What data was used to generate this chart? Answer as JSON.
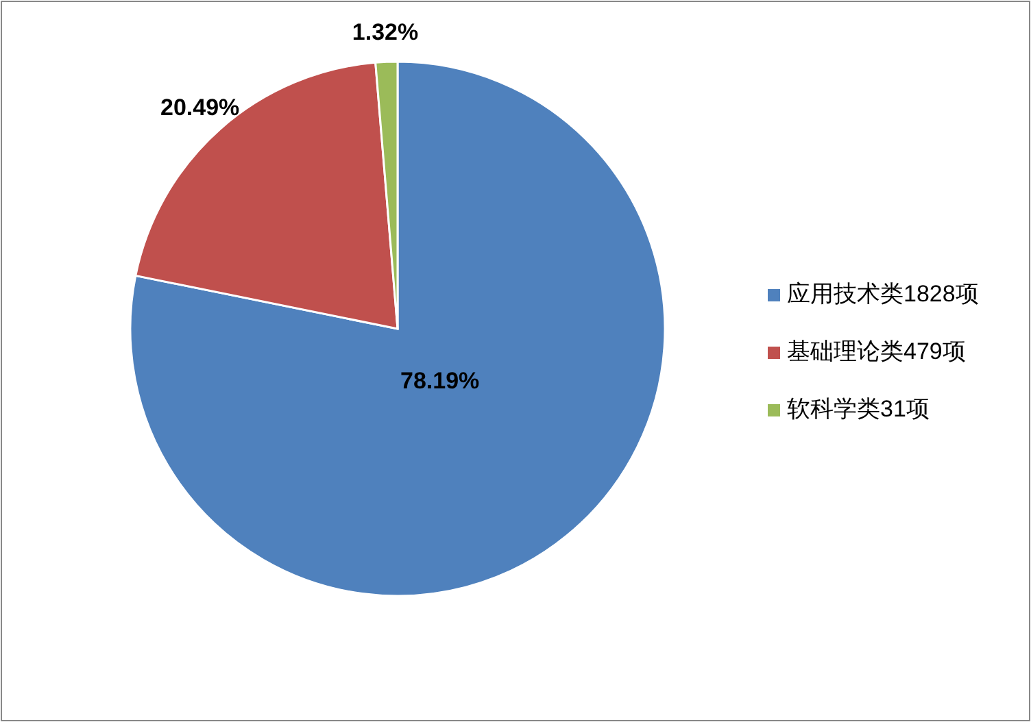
{
  "chart_data": {
    "type": "pie",
    "categories": [
      "应用技术类1828项",
      "基础理论类479项",
      "软科学类31项"
    ],
    "values": [
      78.19,
      20.49,
      1.32
    ],
    "colors": [
      "#4f81bd",
      "#c0504d",
      "#9bbb59"
    ],
    "value_labels": [
      "78.19%",
      "20.49%",
      "1.32%"
    ],
    "legend": "right"
  }
}
